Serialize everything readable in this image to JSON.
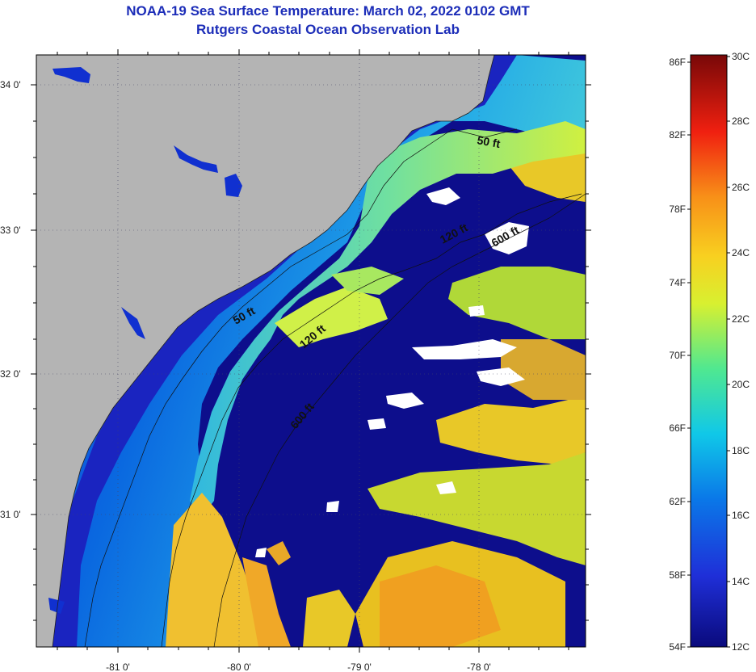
{
  "title": "NOAA-19 Sea Surface Temperature:  March 02, 2022 0102 GMT",
  "subtitle": "Rutgers Coastal Ocean Observation Lab",
  "map": {
    "lat_labels": [
      "34 0'",
      "33 0'",
      "32 0'",
      "31 0'"
    ],
    "lon_labels": [
      "-81 0'",
      "-80 0'",
      "-79 0'",
      "-78 0'"
    ],
    "contours": [
      "50 ft",
      "50 ft",
      "120 ft",
      "120 ft",
      "600 ft",
      "600 ft"
    ]
  },
  "colorbar": {
    "fahrenheit_labels": [
      "86F",
      "82F",
      "78F",
      "74F",
      "70F",
      "66F",
      "62F",
      "58F",
      "54F"
    ],
    "celsius_labels": [
      "30C",
      "28C",
      "26C",
      "24C",
      "22C",
      "20C",
      "18C",
      "16C",
      "14C",
      "12C"
    ]
  },
  "colors": {
    "title": "#1c2db8",
    "land": "#b4b4b4",
    "cloud": "#ffffff",
    "cold": "#0d0e8c",
    "warm": "#f0c020"
  }
}
